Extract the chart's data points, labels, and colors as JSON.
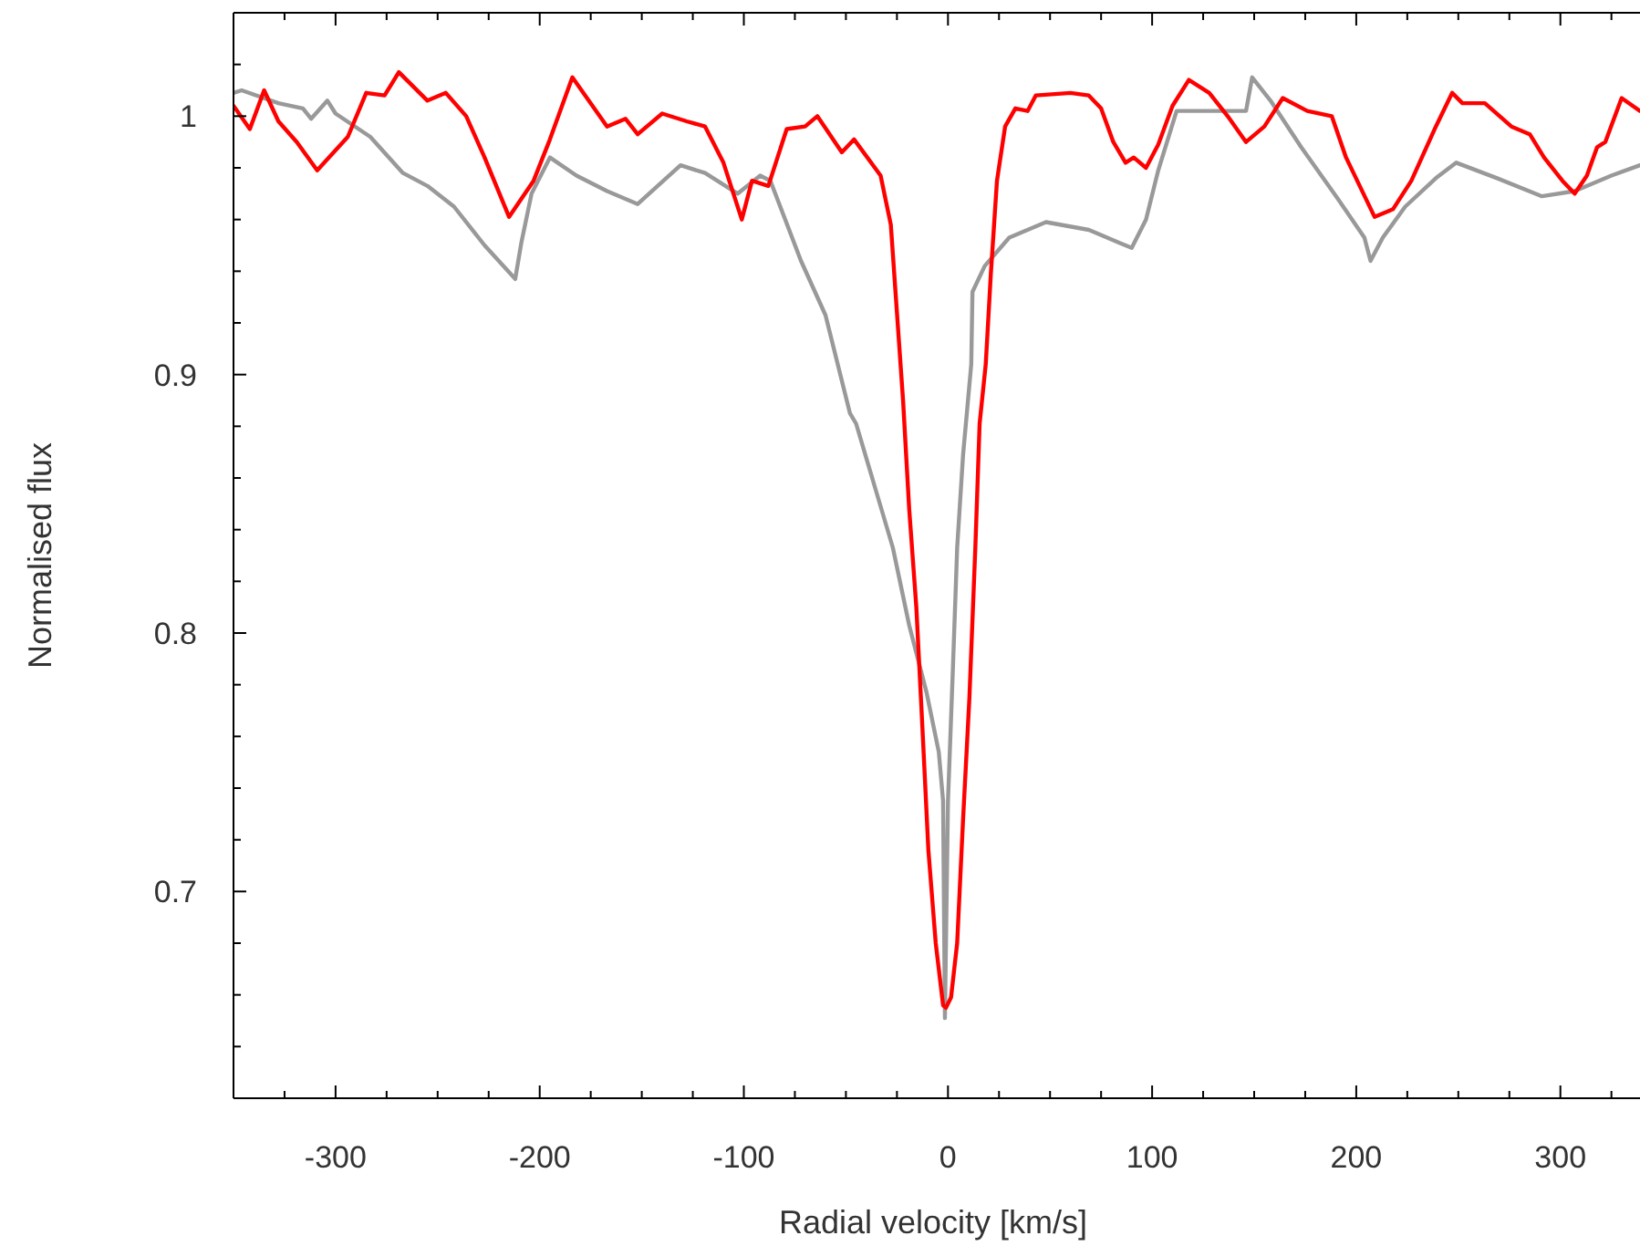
{
  "chart_data": {
    "type": "line",
    "xlabel": "Radial velocity [km/s]",
    "ylabel": "Normalised flux",
    "xlim": [
      -350,
      339
    ],
    "ylim": [
      0.62,
      1.04
    ],
    "xticks": [
      {
        "value": -325,
        "label": null
      },
      {
        "value": -300,
        "label": "-300"
      },
      {
        "value": -275,
        "label": null
      },
      {
        "value": -250,
        "label": null
      },
      {
        "value": -225,
        "label": null
      },
      {
        "value": -200,
        "label": "-200"
      },
      {
        "value": -175,
        "label": null
      },
      {
        "value": -150,
        "label": null
      },
      {
        "value": -125,
        "label": null
      },
      {
        "value": -100,
        "label": "-100"
      },
      {
        "value": -75,
        "label": null
      },
      {
        "value": -50,
        "label": null
      },
      {
        "value": -25,
        "label": null
      },
      0,
      {
        "value": 25,
        "label": null
      },
      {
        "value": 50,
        "label": null
      },
      {
        "value": 75,
        "label": null
      },
      100,
      {
        "value": 125,
        "label": null
      },
      {
        "value": 150,
        "label": null
      },
      {
        "value": 175,
        "label": null
      },
      200,
      {
        "value": 225,
        "label": null
      },
      {
        "value": 250,
        "label": null
      },
      {
        "value": 275,
        "label": null
      },
      300,
      {
        "value": 325,
        "label": null
      }
    ],
    "yticks": [
      {
        "value": 0.62,
        "label": null
      },
      {
        "value": 0.64,
        "label": null
      },
      {
        "value": 0.66,
        "label": null
      },
      {
        "value": 0.68,
        "label": null
      },
      0.7,
      {
        "value": 0.72,
        "label": null
      },
      {
        "value": 0.74,
        "label": null
      },
      {
        "value": 0.76,
        "label": null
      },
      {
        "value": 0.78,
        "label": null
      },
      0.8,
      {
        "value": 0.82,
        "label": null
      },
      {
        "value": 0.84,
        "label": null
      },
      {
        "value": 0.86,
        "label": null
      },
      {
        "value": 0.88,
        "label": null
      },
      0.9,
      {
        "value": 0.92,
        "label": null
      },
      {
        "value": 0.94,
        "label": null
      },
      {
        "value": 0.96,
        "label": null
      },
      {
        "value": 0.98,
        "label": null
      },
      1,
      {
        "value": 1.02,
        "label": null
      },
      {
        "value": 1.04,
        "label": null
      }
    ],
    "grid": false,
    "marker": "none",
    "line_style": "solid",
    "series": [
      {
        "color": "#999999",
        "x": [
          -350,
          -346,
          -328,
          -316,
          -312,
          -304,
          -300,
          -283,
          -267,
          -255,
          -242,
          -227,
          -212,
          -209,
          -204,
          -195,
          -182,
          -167,
          -152,
          -131,
          -119,
          -103,
          -92,
          -87,
          -72,
          -60,
          -48,
          -45,
          -36,
          -27,
          -19,
          -10.5,
          -4.5,
          -2.4,
          -1.5,
          0,
          2.4,
          4.5,
          7.4,
          11.4,
          12,
          18,
          30,
          48,
          69,
          84,
          90,
          97,
          103,
          112,
          146,
          149,
          158,
          173,
          191,
          204,
          207,
          213,
          224,
          239,
          249,
          269,
          291,
          307,
          325,
          339
        ],
        "values": [
          1.009,
          1.01,
          1.005,
          1.003,
          0.999,
          1.006,
          1.001,
          0.992,
          0.978,
          0.973,
          0.965,
          0.95,
          0.937,
          0.951,
          0.97,
          0.984,
          0.977,
          0.971,
          0.966,
          0.981,
          0.978,
          0.97,
          0.977,
          0.975,
          0.944,
          0.923,
          0.885,
          0.881,
          0.857,
          0.833,
          0.803,
          0.777,
          0.754,
          0.735,
          0.651,
          0.735,
          0.786,
          0.833,
          0.869,
          0.904,
          0.932,
          0.942,
          0.953,
          0.959,
          0.956,
          0.951,
          0.949,
          0.96,
          0.979,
          1.002,
          1.002,
          1.015,
          1.006,
          0.988,
          0.968,
          0.953,
          0.944,
          0.953,
          0.965,
          0.976,
          0.982,
          0.976,
          0.969,
          0.971,
          0.977,
          0.981
        ]
      },
      {
        "color": "#ff0000",
        "x": [
          -350,
          -342,
          -335,
          -328,
          -319,
          -309,
          -294,
          -285,
          -276,
          -269,
          -255,
          -246,
          -236,
          -227,
          -215,
          -203,
          -195,
          -184,
          -167,
          -158,
          -152,
          -140,
          -128,
          -119,
          -110,
          -101,
          -96,
          -88,
          -79,
          -70,
          -64,
          -52,
          -46,
          -33,
          -28,
          -22,
          -19,
          -15.5,
          -12.5,
          -9.6,
          -6,
          -2.4,
          -1,
          1.5,
          4.5,
          7.4,
          10.5,
          13.4,
          15.5,
          18.5,
          21,
          24,
          28,
          33,
          39,
          43,
          60,
          69,
          75,
          81,
          87,
          91,
          97,
          103,
          110,
          118,
          128,
          137,
          146,
          155,
          164,
          176,
          188,
          195,
          209,
          218,
          227,
          239,
          247,
          252,
          263,
          276,
          285,
          292,
          301,
          307,
          313,
          318,
          322,
          330,
          339
        ],
        "values": [
          1.004,
          0.995,
          1.01,
          0.998,
          0.99,
          0.979,
          0.992,
          1.009,
          1.008,
          1.017,
          1.006,
          1.009,
          1.0,
          0.984,
          0.961,
          0.975,
          0.991,
          1.015,
          0.996,
          0.999,
          0.993,
          1.001,
          0.998,
          0.996,
          0.982,
          0.96,
          0.975,
          0.973,
          0.995,
          0.996,
          1.0,
          0.986,
          0.991,
          0.977,
          0.958,
          0.89,
          0.848,
          0.81,
          0.763,
          0.716,
          0.68,
          0.656,
          0.655,
          0.659,
          0.68,
          0.728,
          0.775,
          0.833,
          0.881,
          0.904,
          0.939,
          0.975,
          0.996,
          1.003,
          1.002,
          1.008,
          1.009,
          1.008,
          1.003,
          0.99,
          0.982,
          0.984,
          0.98,
          0.989,
          1.004,
          1.014,
          1.009,
          1.0,
          0.99,
          0.996,
          1.007,
          1.002,
          1.0,
          0.984,
          0.961,
          0.964,
          0.975,
          0.996,
          1.009,
          1.005,
          1.005,
          0.996,
          0.993,
          0.984,
          0.975,
          0.97,
          0.977,
          0.988,
          0.99,
          1.007,
          1.002
        ]
      }
    ]
  }
}
